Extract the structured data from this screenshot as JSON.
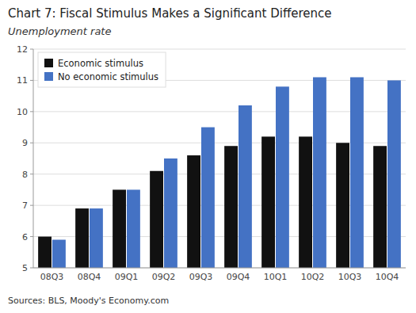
{
  "chart_data": {
    "type": "bar",
    "title": "Chart 7: Fiscal Stimulus Makes a Significant Difference",
    "subtitle": "Unemployment rate",
    "annotations": [
      "Sources: BLS, Moody's Economy.com"
    ],
    "categories": [
      "08Q3",
      "08Q4",
      "09Q1",
      "09Q2",
      "09Q3",
      "09Q4",
      "10Q1",
      "10Q2",
      "10Q3",
      "10Q4"
    ],
    "series": [
      {
        "name": "Economic stimulus",
        "color": "#111111",
        "values": [
          6.0,
          6.9,
          7.5,
          8.1,
          8.6,
          8.9,
          9.2,
          9.2,
          9.0,
          8.9
        ]
      },
      {
        "name": "No economic stimulus",
        "color": "#4472c4",
        "values": [
          5.9,
          6.9,
          7.5,
          8.5,
          9.5,
          10.2,
          10.8,
          11.1,
          11.1,
          11.0
        ]
      }
    ],
    "ylim": [
      5,
      12
    ],
    "yticks": [
      5,
      6,
      7,
      8,
      9,
      10,
      11,
      12
    ],
    "grid": true,
    "legend": "upper left"
  }
}
